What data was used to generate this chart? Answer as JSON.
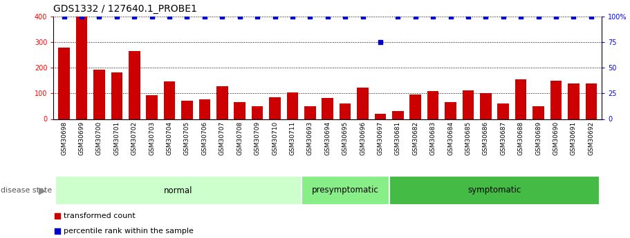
{
  "title": "GDS1332 / 127640.1_PROBE1",
  "samples": [
    "GSM30698",
    "GSM30699",
    "GSM30700",
    "GSM30701",
    "GSM30702",
    "GSM30703",
    "GSM30704",
    "GSM30705",
    "GSM30706",
    "GSM30707",
    "GSM30708",
    "GSM30709",
    "GSM30710",
    "GSM30711",
    "GSM30693",
    "GSM30694",
    "GSM30695",
    "GSM30696",
    "GSM30697",
    "GSM30681",
    "GSM30682",
    "GSM30683",
    "GSM30684",
    "GSM30685",
    "GSM30686",
    "GSM30687",
    "GSM30688",
    "GSM30689",
    "GSM30690",
    "GSM30691",
    "GSM30692"
  ],
  "bar_values": [
    280,
    400,
    192,
    183,
    265,
    93,
    147,
    72,
    76,
    128,
    65,
    50,
    85,
    103,
    50,
    82,
    62,
    122,
    20,
    30,
    95,
    110,
    65,
    113,
    100,
    60,
    155,
    50,
    150,
    138,
    138
  ],
  "percentile_values": [
    100,
    100,
    100,
    100,
    100,
    100,
    100,
    100,
    100,
    100,
    100,
    100,
    100,
    100,
    100,
    100,
    100,
    100,
    75,
    100,
    100,
    100,
    100,
    100,
    100,
    100,
    100,
    100,
    100,
    100,
    100
  ],
  "groups": [
    {
      "label": "normal",
      "start": 0,
      "end": 14,
      "color": "#ccffcc"
    },
    {
      "label": "presymptomatic",
      "start": 14,
      "end": 19,
      "color": "#88ee88"
    },
    {
      "label": "symptomatic",
      "start": 19,
      "end": 31,
      "color": "#44bb44"
    }
  ],
  "bar_color": "#cc0000",
  "percentile_color": "#0000cc",
  "left_ylim": [
    0,
    400
  ],
  "right_ylim": [
    0,
    100
  ],
  "left_yticks": [
    0,
    100,
    200,
    300,
    400
  ],
  "right_yticks": [
    0,
    25,
    50,
    75,
    100
  ],
  "bg_color": "#ffffff",
  "grey_band_color": "#b0b0b0",
  "disease_state_label": "disease state",
  "legend_bar_label": "transformed count",
  "legend_pct_label": "percentile rank within the sample",
  "title_fontsize": 10,
  "tick_fontsize": 7,
  "sample_fontsize": 6.5,
  "group_label_fontsize": 8.5
}
